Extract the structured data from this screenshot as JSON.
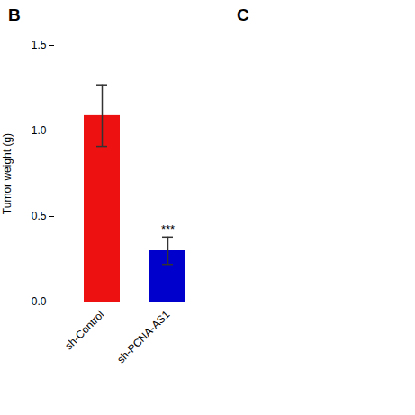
{
  "chart_data": {
    "type": "bar",
    "categories": [
      "sh-Control",
      "sh-PCNA-AS1"
    ],
    "values": [
      1.09,
      0.3
    ],
    "errors": [
      0.18,
      0.08
    ],
    "colors": [
      "#EE1111",
      "#0000CC"
    ],
    "ylabel": "Tumor weight (g)",
    "ylim": [
      0,
      1.5
    ],
    "yticks": [
      {
        "value": 0.0,
        "label": "0.0"
      },
      0.5,
      {
        "value": 1.0,
        "label": "1.0"
      },
      1.5
    ],
    "annotations": [
      {
        "text": "***",
        "category": "sh-PCNA-AS1"
      }
    ],
    "panel_labels": [
      "B",
      "C"
    ],
    "grid": false
  }
}
